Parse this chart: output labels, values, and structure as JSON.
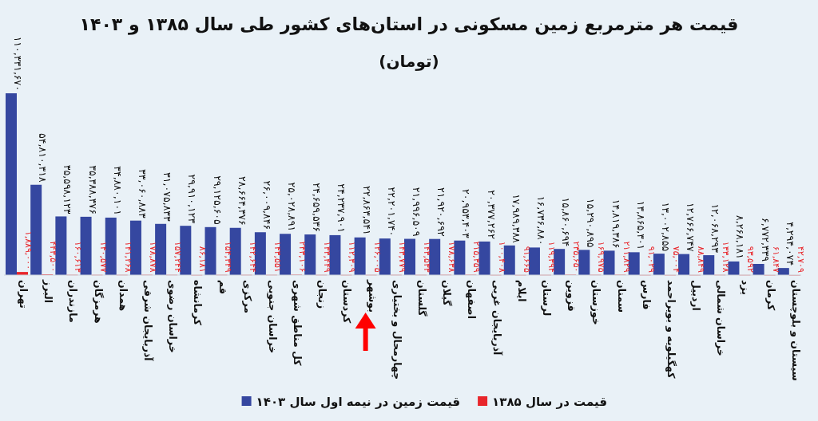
{
  "chart_data": {
    "type": "bar",
    "title": "قیمت هر مترمربع زمین مسکونی در استان‌های کشور طی سال ۱۳۸۵ و ۱۴۰۳",
    "subtitle": "(تومان)",
    "categories": [
      "تهران",
      "البرز",
      "مازندران",
      "هرمزگان",
      "همدان",
      "آذربایجان شرقی",
      "خراسان رضوی",
      "کرمانشاه",
      "قم",
      "مرکزی",
      "خراسان جنوبی",
      "کل مناطق شهری",
      "زنجان",
      "کردستان",
      "بوشهر",
      "چهارمحال و بختیاری",
      "گلستان",
      "گیلان",
      "اصفهان",
      "آذربایجان غربی",
      "ایلام",
      "لرستان",
      "قزوین",
      "خوزستان",
      "سمنان",
      "فارس",
      "کهگیلویه و بویراحمد",
      "اردبیل",
      "خراسان شمالی",
      "یزد",
      "کرمان",
      "سیستان و بلوچستان"
    ],
    "series": [
      {
        "name": "قیمت زمین در نیمه اول سال ۱۴۰۳",
        "color": "#3547a0",
        "values": [
          110331670,
          54810318,
          35598123,
          35388376,
          34880101,
          33060883,
          31075833,
          29910123,
          29125605,
          28664376,
          26009846,
          25028891,
          24659536,
          24237901,
          22863541,
          22201740,
          21996509,
          21920692,
          20953403,
          20377262,
          17989388,
          16736880,
          15860694,
          15290895,
          14819386,
          13865301,
          13002855,
          12766747,
          12068293,
          8268181,
          6772339,
          4294074
        ],
        "value_labels": [
          "۱۱۰,۳۳۱,۶۷۰",
          "۵۴,۸۱۰,۳۱۸",
          "۳۵,۵۹۸,۱۲۳",
          "۳۵,۳۸۸,۳۷۶",
          "۳۴,۸۸۰,۱۰۱",
          "۳۳,۰۶۰,۸۸۳",
          "۳۱,۰۷۵,۸۳۳",
          "۲۹,۹۱۰,۱۲۳",
          "۲۹,۱۲۵,۶۰۵",
          "۲۸,۶۶۴,۳۷۶",
          "۲۶,۰۰۹,۸۴۶",
          "۲۵,۰۲۸,۸۹۱",
          "۲۴,۶۵۹,۵۳۶",
          "۲۴,۲۳۷,۹۰۱",
          "۲۲,۸۶۳,۵۴۱",
          "۲۲,۲۰۱,۷۴۰",
          "۲۱,۹۹۶,۵۰۹",
          "۲۱,۹۲۰,۶۹۲",
          "۲۰,۹۵۳,۴۰۳",
          "۲۰,۳۷۷,۲۶۲",
          "۱۷,۹۸۹,۳۸۸",
          "۱۶,۷۳۶,۸۸۰",
          "۱۵,۸۶۰,۶۹۴",
          "۱۵,۲۹۰,۸۹۵",
          "۱۴,۸۱۹,۳۸۶",
          "۱۳,۸۶۵,۳۰۱",
          "۱۳,۰۰۲,۸۵۵",
          "۱۲,۷۶۶,۷۴۷",
          "۱۲,۰۶۸,۲۹۳",
          "۸,۲۶۸,۱۸۱",
          "۶,۷۷۲,۳۳۹",
          "۴,۲۹۴,۰۷۴"
        ]
      },
      {
        "name": "قیمت در سال ۱۳۸۵",
        "color": "#e8262b",
        "values": [
          1889000,
          443500,
          160613,
          140577,
          141268,
          178878,
          157244,
          86181,
          154349,
          142644,
          143551,
          243106,
          133449,
          112309,
          126005,
          143779,
          143533,
          178638,
          215359,
          100408,
          91665,
          119394,
          235650,
          169975,
          211829,
          91029,
          75004,
          88849,
          133128,
          93592,
          61847,
          42709
        ],
        "value_labels": [
          "۱,۸۸۹,۰۰۰",
          "۴۴۳,۵۰۰",
          "۱۶۰,۶۱۳",
          "۱۴۰,۵۷۷",
          "۱۴۱,۲۶۸",
          "۱۷۸,۸۷۸",
          "۱۵۷,۲۴۴",
          "۸۶,۱۸۱",
          "۱۵۴,۳۴۹",
          "۱۴۲,۶۴۴",
          "۱۴۳,۵۵۱",
          "۲۴۳,۱۰۶",
          "۱۳۳,۴۴۹",
          "۱۱۲,۳۰۹",
          "۱۲۶,۰۰۵",
          "۱۴۳,۷۷۹",
          "۱۴۳,۵۳۳",
          "۱۷۸,۶۳۸",
          "۲۱۵,۳۵۹",
          "۱۰۰,۴۰۸",
          "۹۱,۶۶۵",
          "۱۱۹,۳۹۴",
          "۲۳۵,۶۵۰",
          "۱۶۹,۹۷۵",
          "۲۱۱,۸۲۹",
          "۹۱,۰۲۹",
          "۷۵,۰۰۴",
          "۸۸,۸۴۹",
          "۱۳۳,۱۲۸",
          "۹۳,۵۹۲",
          "۶۱,۸۴۷",
          "۴۲,۷۰۹"
        ]
      }
    ],
    "legend": "bottom"
  }
}
